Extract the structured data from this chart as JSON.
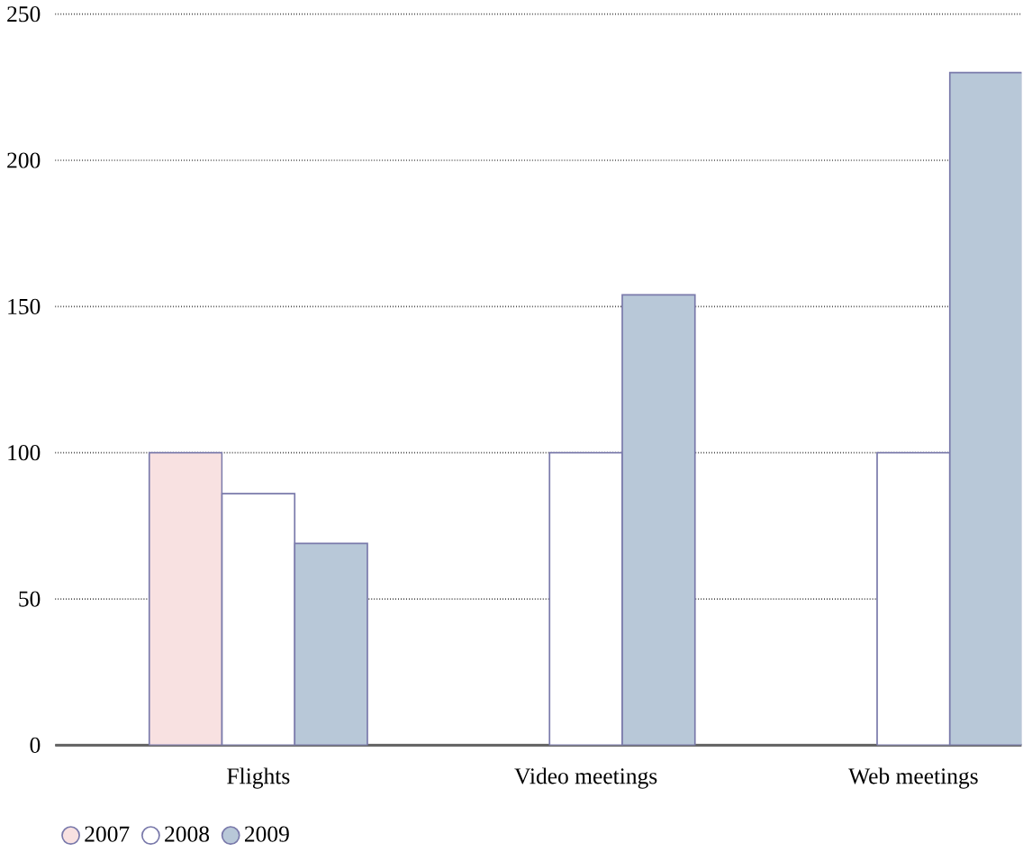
{
  "chart_data": {
    "type": "bar",
    "categories": [
      "Flights",
      "Video meetings",
      "Web meetings"
    ],
    "series": [
      {
        "name": "2007",
        "color": "#f8e1e1",
        "values": [
          100,
          null,
          null
        ]
      },
      {
        "name": "2008",
        "color": "#ffffff",
        "values": [
          86,
          100,
          100
        ]
      },
      {
        "name": "2009",
        "color": "#b8c8d8",
        "values": [
          69,
          154,
          230
        ]
      }
    ],
    "ylim": [
      0,
      250
    ],
    "yticks": [
      0,
      50,
      100,
      150,
      200,
      250
    ],
    "grid": "y",
    "legend": "bottom left"
  }
}
